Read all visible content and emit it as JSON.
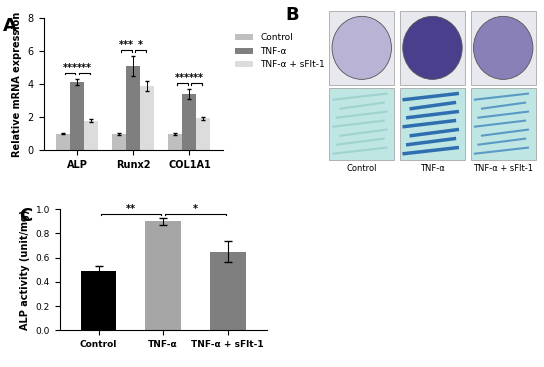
{
  "chart_data": [
    {
      "type": "bar",
      "panel": "A",
      "y_label": "Relative mRNA expression",
      "categories": [
        "ALP",
        "Runx2",
        "COL1A1"
      ],
      "series": [
        {
          "name": "Control",
          "color": "#bfbfbf",
          "values": [
            1.0,
            1.0,
            1.0
          ],
          "errors": [
            0.03,
            0.05,
            0.04
          ]
        },
        {
          "name": "TNF-α",
          "color": "#7f7f7f",
          "values": [
            4.15,
            5.1,
            3.4
          ],
          "errors": [
            0.2,
            0.6,
            0.3
          ]
        },
        {
          "name": "TNF-α + sFlt-1",
          "color": "#dcdcdc",
          "values": [
            1.8,
            3.9,
            1.95
          ],
          "errors": [
            0.1,
            0.3,
            0.1
          ]
        }
      ],
      "ylim": [
        0,
        8
      ],
      "yticks": [
        0,
        2,
        4,
        6,
        8
      ],
      "legend": "right",
      "significance": [
        {
          "category": "ALP",
          "between": [
            "Control",
            "TNF-α"
          ],
          "text": "***"
        },
        {
          "category": "ALP",
          "between": [
            "TNF-α",
            "TNF-α + sFlt-1"
          ],
          "text": "***"
        },
        {
          "category": "Runx2",
          "between": [
            "Control",
            "TNF-α"
          ],
          "text": "***"
        },
        {
          "category": "Runx2",
          "between": [
            "TNF-α",
            "TNF-α + sFlt-1"
          ],
          "text": "*"
        },
        {
          "category": "COL1A1",
          "between": [
            "Control",
            "TNF-α"
          ],
          "text": "***"
        },
        {
          "category": "COL1A1",
          "between": [
            "TNF-α",
            "TNF-α + sFlt-1"
          ],
          "text": "***"
        }
      ]
    },
    {
      "type": "image",
      "panel": "B",
      "labels": [
        "Control",
        "TNF-α",
        "TNF-α + sFlt-1"
      ]
    },
    {
      "type": "bar",
      "panel": "C",
      "y_label": "ALP activity (unit/mg)",
      "categories": [
        "Control",
        "TNF-α",
        "TNF-α + sFlt-1"
      ],
      "values": [
        0.49,
        0.9,
        0.65
      ],
      "errors": [
        0.04,
        0.03,
        0.09
      ],
      "colors": [
        "#000000",
        "#a6a6a6",
        "#7f7f7f"
      ],
      "ylim": [
        0.0,
        1.0
      ],
      "yticks": [
        {
          "value": 0.0,
          "label": "0.0"
        },
        {
          "value": 0.2,
          "label": "0.2"
        },
        {
          "value": 0.4,
          "label": "0.4"
        },
        {
          "value": 0.6,
          "label": "0.6"
        },
        {
          "value": 0.8,
          "label": "0.8"
        },
        {
          "value": 1.0,
          "label": "1.0"
        }
      ],
      "significance": [
        {
          "between": [
            "Control",
            "TNF-α"
          ],
          "text": "**"
        },
        {
          "between": [
            "TNF-α",
            "TNF-α + sFlt-1"
          ],
          "text": "*"
        }
      ]
    }
  ]
}
